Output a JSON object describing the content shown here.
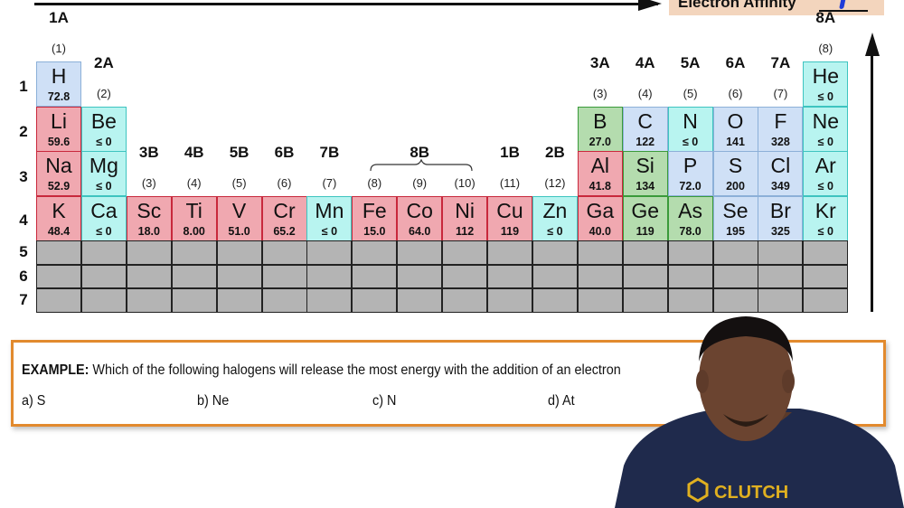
{
  "header": {
    "trend_label": "Electron Affinity",
    "trend_direction_marker": "increasing-up"
  },
  "groups_top": [
    {
      "label": "1A",
      "num": "(1)",
      "col": 1
    },
    {
      "label": "2A",
      "num": "(2)",
      "col": 2
    },
    {
      "label": "3B",
      "num": "(3)",
      "col": 3
    },
    {
      "label": "4B",
      "num": "(4)",
      "col": 4
    },
    {
      "label": "5B",
      "num": "(5)",
      "col": 5
    },
    {
      "label": "6B",
      "num": "(6)",
      "col": 6
    },
    {
      "label": "7B",
      "num": "(7)",
      "col": 7
    },
    {
      "label": "8B",
      "num": "(8)",
      "col": 8
    },
    {
      "label": "",
      "num": "(9)",
      "col": 9
    },
    {
      "label": "",
      "num": "(10)",
      "col": 10
    },
    {
      "label": "1B",
      "num": "(11)",
      "col": 11
    },
    {
      "label": "2B",
      "num": "(12)",
      "col": 12
    },
    {
      "label": "3A",
      "num": "(3)",
      "col": 13
    },
    {
      "label": "4A",
      "num": "(4)",
      "col": 14
    },
    {
      "label": "5A",
      "num": "(5)",
      "col": 15
    },
    {
      "label": "6A",
      "num": "(6)",
      "col": 16
    },
    {
      "label": "7A",
      "num": "(7)",
      "col": 17
    },
    {
      "label": "8A",
      "num": "(8)",
      "col": 18
    }
  ],
  "periods": [
    "1",
    "2",
    "3",
    "4",
    "5",
    "6",
    "7"
  ],
  "elements": [
    {
      "sym": "H",
      "val": "72.8",
      "row": 1,
      "col": 1,
      "color": "blue"
    },
    {
      "sym": "He",
      "val": "≤ 0",
      "row": 1,
      "col": 18,
      "color": "cyan"
    },
    {
      "sym": "Li",
      "val": "59.6",
      "row": 2,
      "col": 1,
      "color": "red"
    },
    {
      "sym": "Be",
      "val": "≤ 0",
      "row": 2,
      "col": 2,
      "color": "cyan"
    },
    {
      "sym": "B",
      "val": "27.0",
      "row": 2,
      "col": 13,
      "color": "green"
    },
    {
      "sym": "C",
      "val": "122",
      "row": 2,
      "col": 14,
      "color": "blue"
    },
    {
      "sym": "N",
      "val": "≤ 0",
      "row": 2,
      "col": 15,
      "color": "cyan"
    },
    {
      "sym": "O",
      "val": "141",
      "row": 2,
      "col": 16,
      "color": "blue"
    },
    {
      "sym": "F",
      "val": "328",
      "row": 2,
      "col": 17,
      "color": "blue"
    },
    {
      "sym": "Ne",
      "val": "≤ 0",
      "row": 2,
      "col": 18,
      "color": "cyan"
    },
    {
      "sym": "Na",
      "val": "52.9",
      "row": 3,
      "col": 1,
      "color": "red"
    },
    {
      "sym": "Mg",
      "val": "≤ 0",
      "row": 3,
      "col": 2,
      "color": "cyan"
    },
    {
      "sym": "Al",
      "val": "41.8",
      "row": 3,
      "col": 13,
      "color": "red"
    },
    {
      "sym": "Si",
      "val": "134",
      "row": 3,
      "col": 14,
      "color": "green"
    },
    {
      "sym": "P",
      "val": "72.0",
      "row": 3,
      "col": 15,
      "color": "blue"
    },
    {
      "sym": "S",
      "val": "200",
      "row": 3,
      "col": 16,
      "color": "blue"
    },
    {
      "sym": "Cl",
      "val": "349",
      "row": 3,
      "col": 17,
      "color": "blue"
    },
    {
      "sym": "Ar",
      "val": "≤ 0",
      "row": 3,
      "col": 18,
      "color": "cyan"
    },
    {
      "sym": "K",
      "val": "48.4",
      "row": 4,
      "col": 1,
      "color": "red"
    },
    {
      "sym": "Ca",
      "val": "≤ 0",
      "row": 4,
      "col": 2,
      "color": "cyan"
    },
    {
      "sym": "Sc",
      "val": "18.0",
      "row": 4,
      "col": 3,
      "color": "red"
    },
    {
      "sym": "Ti",
      "val": "8.00",
      "row": 4,
      "col": 4,
      "color": "red"
    },
    {
      "sym": "V",
      "val": "51.0",
      "row": 4,
      "col": 5,
      "color": "red"
    },
    {
      "sym": "Cr",
      "val": "65.2",
      "row": 4,
      "col": 6,
      "color": "red"
    },
    {
      "sym": "Mn",
      "val": "≤ 0",
      "row": 4,
      "col": 7,
      "color": "cyan"
    },
    {
      "sym": "Fe",
      "val": "15.0",
      "row": 4,
      "col": 8,
      "color": "red"
    },
    {
      "sym": "Co",
      "val": "64.0",
      "row": 4,
      "col": 9,
      "color": "red"
    },
    {
      "sym": "Ni",
      "val": "112",
      "row": 4,
      "col": 10,
      "color": "red"
    },
    {
      "sym": "Cu",
      "val": "119",
      "row": 4,
      "col": 11,
      "color": "red"
    },
    {
      "sym": "Zn",
      "val": "≤ 0",
      "row": 4,
      "col": 12,
      "color": "cyan"
    },
    {
      "sym": "Ga",
      "val": "40.0",
      "row": 4,
      "col": 13,
      "color": "red"
    },
    {
      "sym": "Ge",
      "val": "119",
      "row": 4,
      "col": 14,
      "color": "green"
    },
    {
      "sym": "As",
      "val": "78.0",
      "row": 4,
      "col": 15,
      "color": "green"
    },
    {
      "sym": "Se",
      "val": "195",
      "row": 4,
      "col": 16,
      "color": "blue"
    },
    {
      "sym": "Br",
      "val": "325",
      "row": 4,
      "col": 17,
      "color": "blue"
    },
    {
      "sym": "Kr",
      "val": "≤ 0",
      "row": 4,
      "col": 18,
      "color": "cyan"
    }
  ],
  "example": {
    "prefix": "EXAMPLE:",
    "question": "Which of the following halogens will release the most energy with the addition of an electron",
    "options": [
      "a) S",
      "b) Ne",
      "c) N",
      "d) At"
    ]
  },
  "presenter": {
    "shirt_text": "CLUTCH"
  },
  "colors": {
    "red": "#f0a8b0",
    "cyan": "#b8f4f0",
    "blue": "#cfe0f6",
    "green": "#b4dcae",
    "gray": "#b4b4b4",
    "example_border": "#e28a2e",
    "trend_box": "#f3d5bd"
  }
}
